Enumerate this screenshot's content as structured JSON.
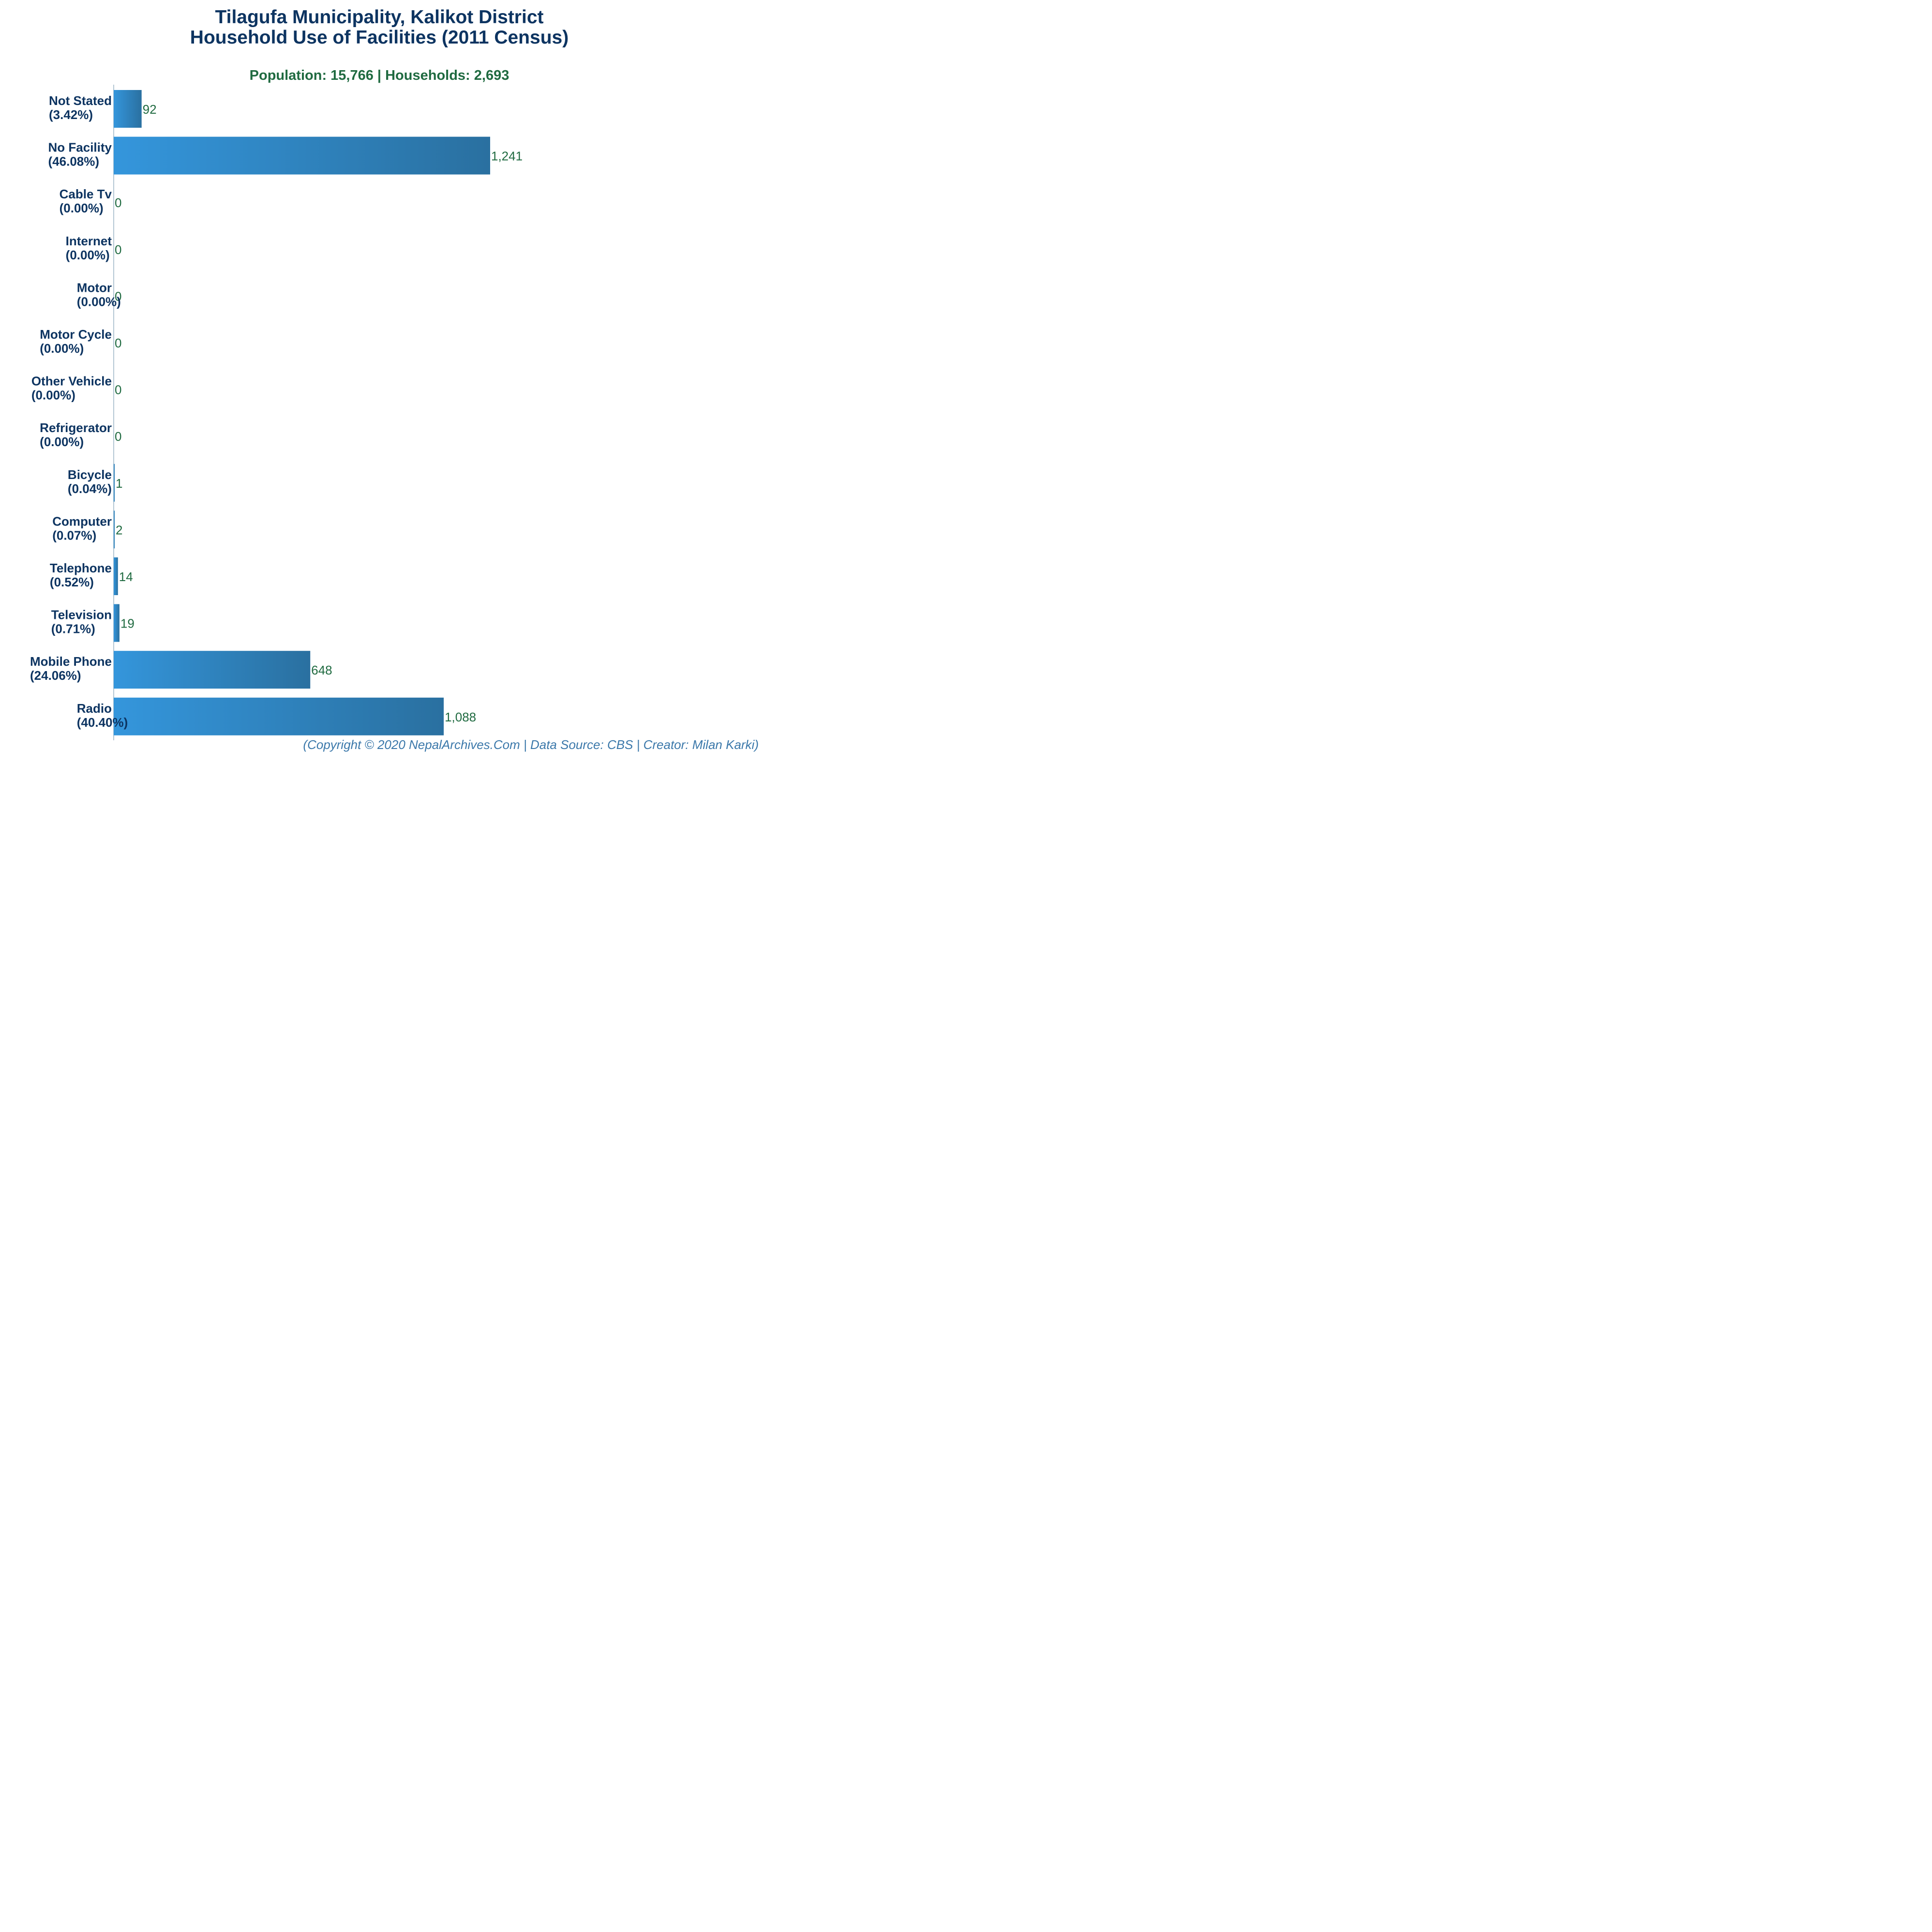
{
  "title_line1": "Tilagufa Municipality, Kalikot District",
  "title_line2": "Household Use of Facilities (2011 Census)",
  "subtitle": "Population: 15,766 | Households: 2,693",
  "footer": "(Copyright © 2020 NepalArchives.Com | Data Source: CBS | Creator: Milan Karki)",
  "colors": {
    "bar_start": "#3496dc",
    "bar_end": "#2a70a0",
    "label": "#0d3461",
    "value": "#1f6a40"
  },
  "chart_data": {
    "type": "bar",
    "orientation": "horizontal",
    "categories": [
      "Not Stated",
      "No Facility",
      "Cable Tv",
      "Internet",
      "Motor",
      "Motor Cycle",
      "Other Vehicle",
      "Refrigerator",
      "Bicycle",
      "Computer",
      "Telephone",
      "Television",
      "Mobile Phone",
      "Radio"
    ],
    "percent_labels": [
      "(3.42%)",
      "(46.08%)",
      "(0.00%)",
      "(0.00%)",
      "(0.00%)",
      "(0.00%)",
      "(0.00%)",
      "(0.00%)",
      "(0.04%)",
      "(0.07%)",
      "(0.52%)",
      "(0.71%)",
      "(24.06%)",
      "(40.40%)"
    ],
    "values": [
      92,
      1241,
      0,
      0,
      0,
      0,
      0,
      0,
      1,
      2,
      14,
      19,
      648,
      1088
    ],
    "value_labels": [
      "92",
      "1,241",
      "0",
      "0",
      "0",
      "0",
      "0",
      "0",
      "1",
      "2",
      "14",
      "19",
      "648",
      "1,088"
    ],
    "xlim": [
      0,
      2100
    ],
    "grid": false,
    "legend": "none"
  }
}
